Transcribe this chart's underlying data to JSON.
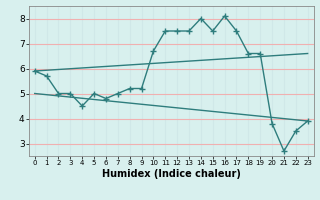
{
  "line1_x": [
    0,
    1,
    2,
    3,
    4,
    5,
    6,
    7,
    8,
    9,
    10,
    11,
    12,
    13,
    14,
    15,
    16,
    17,
    18,
    19,
    20,
    21,
    22,
    23
  ],
  "line1_y": [
    5.9,
    5.7,
    5.0,
    5.0,
    4.5,
    5.0,
    4.8,
    5.0,
    5.2,
    5.2,
    6.7,
    7.5,
    7.5,
    7.5,
    8.0,
    7.5,
    8.1,
    7.5,
    6.6,
    6.6,
    3.8,
    2.7,
    3.5,
    3.9
  ],
  "line2_x": [
    0,
    23
  ],
  "line2_y": [
    5.9,
    6.6
  ],
  "line3_x": [
    0,
    23
  ],
  "line3_y": [
    5.0,
    3.9
  ],
  "color": "#2e7d7d",
  "bg_color": "#d8f0ee",
  "grid_color_h": "#f0b0b0",
  "grid_color_v": "#d0e8e8",
  "xlabel": "Humidex (Indice chaleur)",
  "xlim": [
    -0.5,
    23.5
  ],
  "ylim": [
    2.5,
    8.5
  ],
  "xticks": [
    0,
    1,
    2,
    3,
    4,
    5,
    6,
    7,
    8,
    9,
    10,
    11,
    12,
    13,
    14,
    15,
    16,
    17,
    18,
    19,
    20,
    21,
    22,
    23
  ],
  "yticks": [
    3,
    4,
    5,
    6,
    7,
    8
  ]
}
